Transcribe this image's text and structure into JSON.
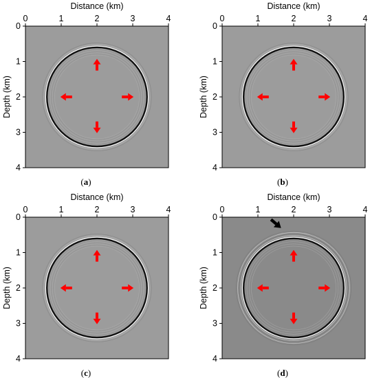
{
  "figure": {
    "panels": [
      {
        "caption_letter": "a",
        "xlabel": "Distance (km)",
        "ylabel": "Depth (km)",
        "xticks": [
          "0",
          "1",
          "2",
          "3",
          "4"
        ],
        "yticks": [
          "0",
          "1",
          "2",
          "3",
          "4"
        ],
        "background": "#9c9c9c",
        "ring_center_km": [
          2,
          2
        ],
        "ring_radius_km": 1.4,
        "arrow_note": ""
      },
      {
        "caption_letter": "b",
        "xlabel": "Distance (km)",
        "ylabel": "Depth (km)",
        "xticks": [
          "0",
          "1",
          "2",
          "3",
          "4"
        ],
        "yticks": [
          "0",
          "1",
          "2",
          "3",
          "4"
        ],
        "background": "#9c9c9c",
        "ring_center_km": [
          2,
          2
        ],
        "ring_radius_km": 1.4,
        "arrow_note": ""
      },
      {
        "caption_letter": "c",
        "xlabel": "Distance (km)",
        "ylabel": "Depth (km)",
        "xticks": [
          "0",
          "1",
          "2",
          "3",
          "4"
        ],
        "yticks": [
          "0",
          "1",
          "2",
          "3",
          "4"
        ],
        "background": "#9c9c9c",
        "ring_center_km": [
          2,
          2
        ],
        "ring_radius_km": 1.4,
        "arrow_note": ""
      },
      {
        "caption_letter": "d",
        "xlabel": "Distance (km)",
        "ylabel": "Depth (km)",
        "xticks": [
          "0",
          "1",
          "2",
          "3",
          "4"
        ],
        "yticks": [
          "0",
          "1",
          "2",
          "3",
          "4"
        ],
        "background": "#8a8a8a",
        "ring_center_km": [
          2,
          2
        ],
        "ring_radius_km": 1.4,
        "arrow_note": "black-arrow"
      }
    ],
    "colors": {
      "arrow": "#ff0000",
      "ring_dark": "#111111",
      "ring_light": "#ffffff",
      "pointer_arrow": "#000000"
    }
  }
}
